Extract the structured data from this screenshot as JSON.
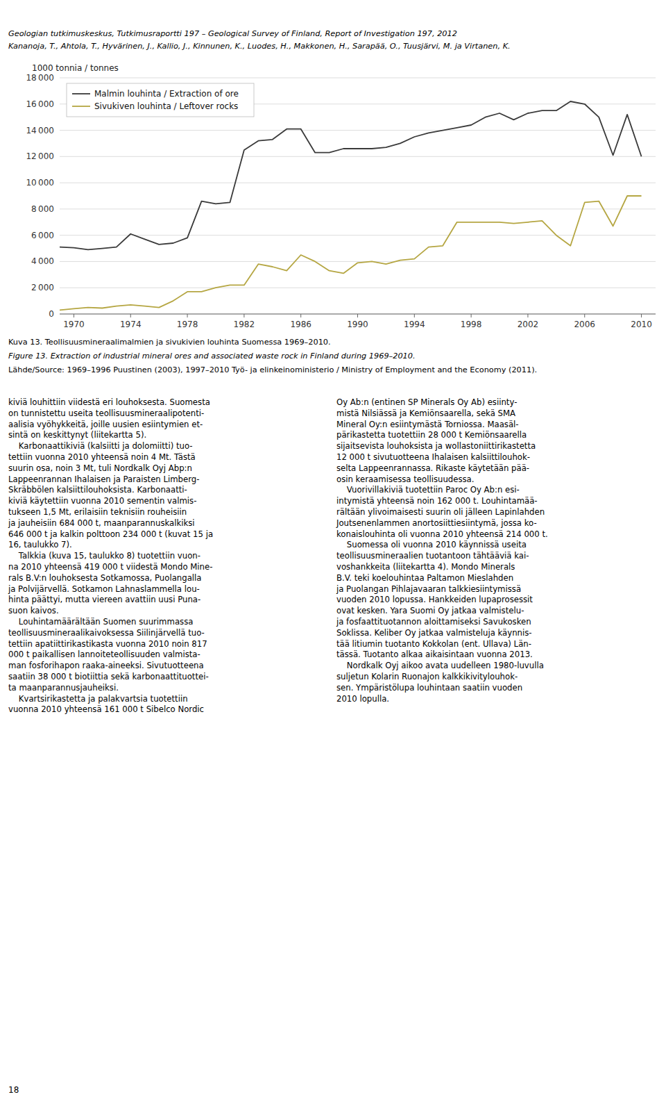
{
  "chart_data": {
    "type": "line",
    "y_label": "1000 tonnia / tonnes",
    "x": [
      1969,
      1970,
      1971,
      1972,
      1973,
      1974,
      1975,
      1976,
      1977,
      1978,
      1979,
      1980,
      1981,
      1982,
      1983,
      1984,
      1985,
      1986,
      1987,
      1988,
      1989,
      1990,
      1991,
      1992,
      1993,
      1994,
      1995,
      1996,
      1997,
      1998,
      1999,
      2000,
      2001,
      2002,
      2003,
      2004,
      2005,
      2006,
      2007,
      2008,
      2009,
      2010
    ],
    "series": [
      {
        "name": "Malmin louhinta / Extraction of ore",
        "color": "#3a3a3a",
        "values": [
          5100,
          5050,
          4900,
          5000,
          5100,
          6100,
          5700,
          5300,
          5400,
          5800,
          8600,
          8400,
          8500,
          12500,
          13200,
          13300,
          14100,
          14100,
          12300,
          12300,
          12600,
          12600,
          12600,
          12700,
          13000,
          13500,
          13800,
          14000,
          14200,
          14400,
          15000,
          15300,
          14800,
          15300,
          15500,
          15500,
          16200,
          16000,
          15000,
          12100,
          15200,
          12000
        ]
      },
      {
        "name": "Sivukiven louhinta / Leftover rocks",
        "color": "#b5a642",
        "values": [
          300,
          400,
          500,
          450,
          600,
          700,
          600,
          500,
          1000,
          1700,
          1700,
          2000,
          2200,
          2200,
          3800,
          3600,
          3300,
          4500,
          4000,
          3300,
          3100,
          3900,
          4000,
          3800,
          4100,
          4200,
          5100,
          5200,
          7000,
          7000,
          7000,
          7000,
          6900,
          7000,
          7100,
          6000,
          5200,
          8500,
          8600,
          6700,
          9000,
          9000
        ]
      }
    ],
    "xlim": [
      1969,
      2011
    ],
    "xticks": [
      1970,
      1974,
      1978,
      1982,
      1986,
      1990,
      1994,
      1998,
      2002,
      2006,
      2010
    ],
    "ylim": [
      0,
      18000
    ],
    "yticks": [
      0,
      {
        "value": 2000,
        "label": "2 000"
      },
      {
        "value": 4000,
        "label": "4 000"
      },
      {
        "value": 6000,
        "label": "6 000"
      },
      {
        "value": 8000,
        "label": "8 000"
      },
      {
        "value": 10000,
        "label": "10 000"
      },
      {
        "value": 12000,
        "label": "12 000"
      },
      {
        "value": 14000,
        "label": "14 000"
      },
      {
        "value": 16000,
        "label": "16 000"
      },
      {
        "value": 18000,
        "label": "18 000"
      }
    ],
    "grid": true,
    "legend": "upper left"
  },
  "page": {
    "header": [
      "Geologian tutkimuskeskus, Tutkimusraportti 197 – Geological Survey of Finland, Report of Investigation 197, 2012",
      "Kananoja, T., Ahtola, T., Hyvärinen, J., Kallio, J., Kinnunen, K., Luodes, H., Makkonen, H., Sarapää, O., Tuusjärvi, M. ja Virtanen, K."
    ],
    "caption": [
      "Kuva 13. Teollisuusmineraalimalmien ja sivukivien louhinta Suomessa 1969–2010.",
      "Figure 13. Extraction of industrial mineral ores and associated waste rock in Finland during 1969–2010.",
      "Lähde/Source: 1969–1996 Puustinen (2003), 1997–2010 Työ- ja elinkeinoministerio / Ministry of Employment and the Economy (2011)."
    ],
    "body": [
      [
        "kiviä louhittiin viidestä eri louhoksesta. Suomesta",
        "on tunnistettu useita teollisuusmineraalipotenti-",
        "aalisia vyöhykkeitä, joille uusien esiintymien et-",
        "sintä on keskittynyt (liitekartta 5).",
        "    Karbonaattikiviä (kalsiitti ja dolomiitti) tuo-",
        "tettiin vuonna 2010 yhteensä noin 4 Mt. Tästä",
        "suurin osa, noin 3 Mt, tuli Nordkalk Oyj Abp:n",
        "Lappeenrannan Ihalaisen ja Paraisten Limberg-",
        "Skräbbölen kalsiittilouhoksista. Karbonaatti-",
        "kiviä käytettiin vuonna 2010 sementin valmis-",
        "tukseen 1,5 Mt, erilaisiin teknisiin rouheisiin",
        "ja jauheisiin 684 000 t, maanparannuskalkiksi",
        "646 000 t ja kalkin polttoon 234 000 t (kuvat 15 ja",
        "16, taulukko 7).",
        "    Talkkia (kuva 15, taulukko 8) tuotettiin vuon-",
        "na 2010 yhteensä 419 000 t viidestä Mondo Mine-",
        "rals B.V:n louhoksesta Sotkamossa, Puolangalla",
        "ja Polvijärvellä. Sotkamon Lahnaslammella lou-",
        "hinta päättyi, mutta viereen avattiin uusi Puna-",
        "suon kaivos.",
        "    Louhintamäärältään Suomen suurimmassa",
        "teollisuusmineraalikaivoksessa Siilinjärvellä tuo-",
        "tettiin apatiittirikastikasta vuonna 2010 noin 817",
        "000 t paikallisen lannoiteteollisuuden valmista-",
        "man fosforihapon raaka-aineeksi. Sivutuotteena",
        "saatiin 38 000 t biotiittia sekä karbonaattituottei-",
        "ta maanparannusjauheiksi.",
        "    Kvartsirikastetta ja palakvartsia tuotettiin",
        "vuonna 2010 yhteensä 161 000 t Sibelco Nordic"
      ],
      [
        "Oy Ab:n (entinen SP Minerals Oy Ab) esiinty-",
        "mistä Nilsiässä ja Kemiönsaarella, sekä SMA",
        "Mineral Oy:n esiintymästä Torniossa. Maasäl-",
        "pärikastetta tuotettiin 28 000 t Kemiönsaarella",
        "sijaitsevista louhoksista ja wollastoniittirikastetta",
        "12 000 t sivutuotteena Ihalaisen kalsiittilouhok-",
        "selta Lappeenrannassa. Rikaste käytetään pää-",
        "osin keraamisessa teollisuudessa.",
        "    Vuorivillakiviä tuotettiin Paroc Oy Ab:n esi-",
        "intymistä yhteensä noin 162 000 t. Louhintamää-",
        "rältään ylivoimaisesti suurin oli jälleen Lapinlahden",
        "Joutsenenlammen anortosiittiesiintymä, jossa ko-",
        "konaislouhinta oli vuonna 2010 yhteensä 214 000 t.",
        "    Suomessa oli vuonna 2010 käynnissä useita",
        "teollisuusmineraalien tuotantoon tähtääviä kai-",
        "voshankkeita (liitekartta 4). Mondo Minerals",
        "B.V. teki koelouhintaa Paltamon Mieslahden",
        "ja Puolangan Pihlajavaaran talkkiesiintymissä",
        "vuoden 2010 lopussa. Hankkeiden lupaprosessit",
        "ovat kesken. Yara Suomi Oy jatkaa valmistelu-",
        "ja fosfaattituotannon aloittamiseksi Savukosken",
        "Soklissa. Keliber Oy jatkaa valmisteluja käynnis-",
        "tää litiumin tuotanto Kokkolan (ent. Ullava) Län-",
        "tässä. Tuotanto alkaa aikaisintaan vuonna 2013.",
        "    Nordkalk Oyj aikoo avata uudelleen 1980-luvulla",
        "suljetun Kolarin Ruonajon kalkkikivitylouhok-",
        "sen. Ympäristölupa louhintaan saatiin vuoden",
        "2010 lopulla."
      ]
    ],
    "page_number": "18"
  }
}
